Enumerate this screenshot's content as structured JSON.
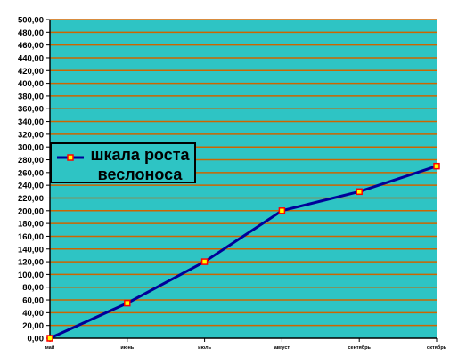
{
  "chart_data": {
    "type": "line",
    "title": "",
    "xlabel": "",
    "ylabel": "",
    "categories": [
      "май",
      "июнь",
      "июль",
      "август",
      "сентябрь",
      "октябрь"
    ],
    "series": [
      {
        "name": "шкала роста веслоноса",
        "values": [
          0,
          55,
          120,
          200,
          230,
          270
        ]
      }
    ],
    "ylim": [
      0,
      500
    ],
    "ytick_step": 20,
    "ytick_labels": [
      "0,00",
      "20,00",
      "40,00",
      "60,00",
      "80,00",
      "100,00",
      "120,00",
      "140,00",
      "160,00",
      "180,00",
      "200,00",
      "220,00",
      "240,00",
      "260,00",
      "280,00",
      "300,00",
      "320,00",
      "340,00",
      "360,00",
      "380,00",
      "400,00",
      "420,00",
      "440,00",
      "460,00",
      "480,00",
      "500,00"
    ],
    "grid": true,
    "legend_placement": "left",
    "colors": {
      "plot_background": "#2ec4c4",
      "gridline": "#cc6600",
      "line": "#000099",
      "marker_fill": "#ffff00",
      "marker_edge": "#ff0000",
      "axis": "#000000"
    }
  }
}
